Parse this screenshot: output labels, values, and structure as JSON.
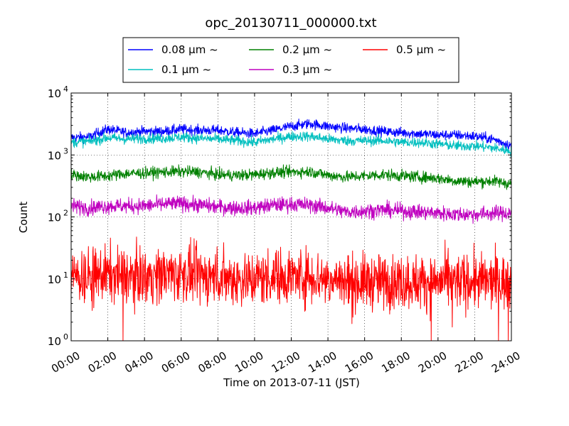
{
  "chart_data": {
    "type": "line",
    "title": "opc_20130711_000000.txt",
    "xlabel": "Time on 2013-07-11 (JST)",
    "ylabel": "Count",
    "yscale": "log",
    "xlim": [
      "00:00",
      "24:00"
    ],
    "ylim": [
      1,
      10000
    ],
    "grid": true,
    "legend_position": "top-center",
    "x_ticks": [
      "00:00",
      "02:00",
      "04:00",
      "06:00",
      "08:00",
      "10:00",
      "12:00",
      "14:00",
      "16:00",
      "18:00",
      "20:00",
      "22:00",
      "24:00"
    ],
    "y_ticks": [
      {
        "base": "10",
        "exp": "0",
        "value": 1
      },
      {
        "base": "10",
        "exp": "1",
        "value": 10
      },
      {
        "base": "10",
        "exp": "2",
        "value": 100
      },
      {
        "base": "10",
        "exp": "3",
        "value": 1000
      },
      {
        "base": "10",
        "exp": "4",
        "value": 10000
      }
    ],
    "x": [
      0,
      1,
      2,
      3,
      4,
      5,
      6,
      7,
      8,
      9,
      10,
      11,
      12,
      13,
      14,
      15,
      16,
      17,
      18,
      19,
      20,
      21,
      22,
      23,
      24
    ],
    "series": [
      {
        "name": "0.08 μm ~",
        "color": "#0000ff",
        "values": [
          1900,
          1950,
          2600,
          2300,
          2400,
          2400,
          2600,
          2500,
          2500,
          2300,
          2200,
          2500,
          2900,
          3200,
          2900,
          2700,
          2600,
          2400,
          2300,
          2200,
          2100,
          2100,
          2000,
          1800,
          1400
        ]
      },
      {
        "name": "0.1 μm ~",
        "color": "#00bfbf",
        "values": [
          1600,
          1650,
          1900,
          1800,
          1850,
          1850,
          1950,
          1850,
          1800,
          1700,
          1600,
          1800,
          2000,
          2000,
          1800,
          1700,
          1700,
          1700,
          1600,
          1600,
          1500,
          1400,
          1400,
          1300,
          1150
        ]
      },
      {
        "name": "0.2 μm ~",
        "color": "#008000",
        "values": [
          480,
          440,
          460,
          500,
          510,
          530,
          540,
          530,
          480,
          470,
          480,
          520,
          530,
          540,
          470,
          440,
          460,
          480,
          460,
          440,
          420,
          380,
          370,
          380,
          340
        ]
      },
      {
        "name": "0.3 μm ~",
        "color": "#bf00bf",
        "values": [
          150,
          140,
          150,
          150,
          150,
          160,
          165,
          155,
          145,
          140,
          140,
          155,
          160,
          155,
          140,
          120,
          125,
          130,
          125,
          120,
          115,
          110,
          110,
          115,
          115
        ]
      },
      {
        "name": "0.5 μm ~",
        "color": "#ff0000",
        "values": [
          11,
          11,
          12,
          11,
          11,
          12,
          12,
          11,
          11,
          10,
          10,
          11,
          11,
          11,
          10,
          9,
          9,
          9,
          9,
          9,
          9,
          9,
          9,
          9,
          9
        ]
      }
    ]
  }
}
